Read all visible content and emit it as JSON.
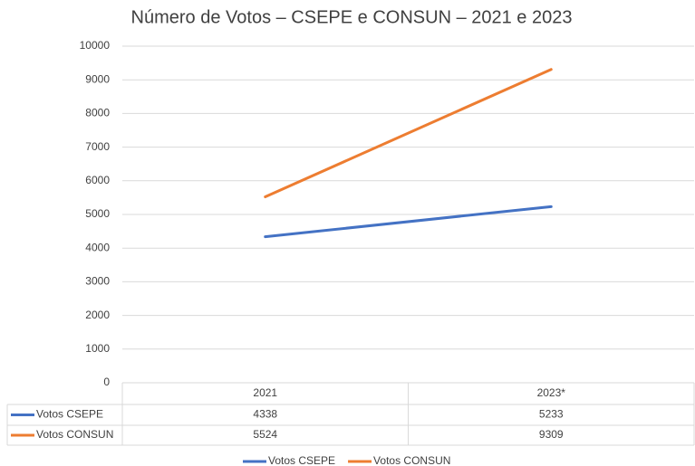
{
  "chart_data": {
    "type": "line",
    "title": "Número de Votos – CSEPE e CONSUN – 2021 e 2023",
    "categories": [
      "2021",
      "2023*"
    ],
    "series": [
      {
        "name": "Votos CSEPE",
        "color": "#4472c4",
        "values": [
          4338,
          5233
        ]
      },
      {
        "name": "Votos CONSUN",
        "color": "#ed7d31",
        "values": [
          5524,
          9309
        ]
      }
    ],
    "ylim": [
      0,
      10000
    ],
    "yticks": [
      0,
      1000,
      2000,
      3000,
      4000,
      5000,
      6000,
      7000,
      8000,
      9000,
      10000
    ],
    "grid": true,
    "data_table": true,
    "legend": "bottom"
  }
}
